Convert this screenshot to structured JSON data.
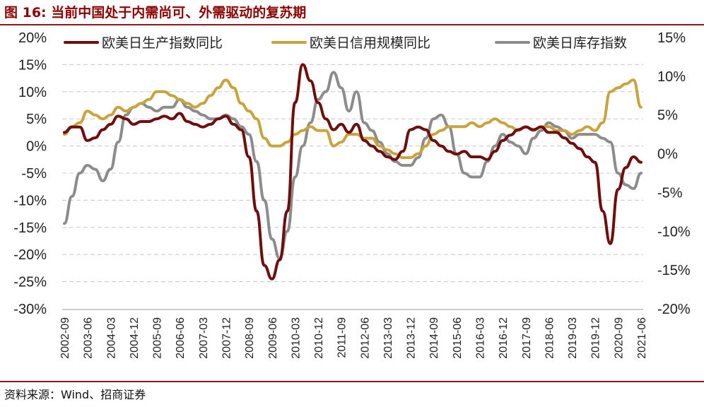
{
  "figure": {
    "title": "图 16:  当前中国处于内需尚可、外需驱动的复苏期",
    "source": "资料来源：Wind、招商证券"
  },
  "chart_data": {
    "type": "line",
    "x": [
      "2002-09",
      "2002-12",
      "2003-03",
      "2003-06",
      "2003-09",
      "2003-12",
      "2004-03",
      "2004-06",
      "2004-09",
      "2004-12",
      "2005-03",
      "2005-06",
      "2005-09",
      "2005-12",
      "2006-03",
      "2006-06",
      "2006-09",
      "2006-12",
      "2007-03",
      "2007-06",
      "2007-09",
      "2007-12",
      "2008-03",
      "2008-06",
      "2008-09",
      "2008-12",
      "2009-03",
      "2009-06",
      "2009-09",
      "2009-12",
      "2010-03",
      "2010-06",
      "2010-09",
      "2010-12",
      "2011-03",
      "2011-06",
      "2011-09",
      "2011-12",
      "2012-03",
      "2012-06",
      "2012-09",
      "2012-12",
      "2013-03",
      "2013-06",
      "2013-09",
      "2013-12",
      "2014-03",
      "2014-06",
      "2014-09",
      "2014-12",
      "2015-03",
      "2015-06",
      "2015-09",
      "2015-12",
      "2016-03",
      "2016-06",
      "2016-09",
      "2016-12",
      "2017-03",
      "2017-06",
      "2017-09",
      "2017-12",
      "2018-03",
      "2018-06",
      "2018-09",
      "2018-12",
      "2019-03",
      "2019-06",
      "2019-09",
      "2019-12",
      "2020-03",
      "2020-06",
      "2020-09",
      "2020-12",
      "2021-03",
      "2021-06"
    ],
    "x_tick_labels": [
      "2002-09",
      "2003-06",
      "2004-03",
      "2004-12",
      "2005-09",
      "2006-06",
      "2007-03",
      "2007-12",
      "2008-09",
      "2009-06",
      "2010-03",
      "2010-12",
      "2011-09",
      "2012-06",
      "2013-03",
      "2013-12",
      "2014-09",
      "2015-06",
      "2016-03",
      "2016-12",
      "2017-09",
      "2018-06",
      "2019-03",
      "2019-12",
      "2020-09",
      "2021-06"
    ],
    "y_left": {
      "min": -30,
      "max": 20,
      "step": 5,
      "tick_labels": [
        "20%",
        "15%",
        "10%",
        "5%",
        "0%",
        "-5%",
        "-10%",
        "-15%",
        "-20%",
        "-25%",
        "-30%"
      ]
    },
    "y_right": {
      "min": -20,
      "max": 15,
      "step": 5,
      "tick_labels": [
        "15%",
        "10%",
        "5%",
        "0%",
        "-5%",
        "-10%",
        "-15%",
        "-20%"
      ]
    },
    "grid": "horizontal-dashed",
    "legend_position": "top",
    "series": [
      {
        "name": "欧美日生产指数同比",
        "color": "#6E0E0E",
        "axis": "left",
        "values": [
          2.5,
          3.5,
          3.5,
          1.0,
          1.5,
          3.0,
          4.0,
          5.5,
          5.0,
          4.0,
          4.5,
          4.5,
          5.0,
          5.5,
          5.0,
          6.0,
          4.5,
          4.0,
          3.5,
          4.0,
          5.0,
          5.5,
          4.0,
          3.0,
          -2.0,
          -12.0,
          -22.0,
          -24.5,
          -21.0,
          -12.0,
          8.0,
          15.0,
          12.0,
          8.0,
          5.0,
          3.0,
          4.0,
          2.5,
          4.0,
          1.0,
          0.0,
          -1.0,
          -2.0,
          -2.5,
          -1.0,
          3.0,
          3.5,
          3.0,
          1.0,
          0.0,
          -1.0,
          -1.5,
          -1.0,
          -2.0,
          -2.0,
          -2.5,
          -1.0,
          1.0,
          2.0,
          3.0,
          3.5,
          3.0,
          3.5,
          2.5,
          2.5,
          1.5,
          0.5,
          -0.5,
          -2.0,
          -3.0,
          -12.0,
          -18.0,
          -8.0,
          -4.0,
          -2.0,
          -3.0
        ]
      },
      {
        "name": "欧美日信用规模同比",
        "color": "#C8A43C",
        "axis": "right",
        "values": [
          2.5,
          3.5,
          4.0,
          5.5,
          5.0,
          4.5,
          5.0,
          6.0,
          5.5,
          6.0,
          6.5,
          7.0,
          8.0,
          8.0,
          7.5,
          7.0,
          6.5,
          6.0,
          6.5,
          7.5,
          8.5,
          9.5,
          8.5,
          6.5,
          5.5,
          4.5,
          2.0,
          1.0,
          1.0,
          1.5,
          2.5,
          3.0,
          3.5,
          3.0,
          3.0,
          1.0,
          1.5,
          2.5,
          2.5,
          2.0,
          2.0,
          1.0,
          0.5,
          0.0,
          -0.5,
          -0.5,
          0.0,
          1.0,
          2.5,
          3.0,
          3.5,
          3.5,
          3.5,
          4.0,
          3.5,
          4.0,
          4.5,
          4.0,
          3.5,
          3.0,
          3.5,
          3.0,
          3.5,
          3.5,
          3.0,
          3.0,
          2.5,
          3.0,
          3.5,
          3.0,
          4.0,
          8.0,
          8.5,
          9.0,
          9.5,
          6.0
        ]
      },
      {
        "name": "欧美日库存指数",
        "color": "#8C8C8C",
        "axis": "right",
        "values": [
          -9.0,
          -5.5,
          -2.5,
          -1.5,
          -2.0,
          -3.5,
          -2.0,
          1.5,
          5.0,
          6.0,
          6.5,
          6.0,
          5.5,
          6.0,
          6.0,
          7.0,
          6.0,
          5.5,
          5.0,
          4.5,
          4.5,
          5.0,
          4.5,
          3.5,
          2.5,
          -1.0,
          -6.0,
          -11.0,
          -13.5,
          -10.0,
          -3.0,
          1.0,
          4.0,
          7.0,
          8.0,
          10.5,
          8.5,
          5.5,
          8.0,
          4.0,
          3.0,
          1.5,
          0.0,
          -1.0,
          -1.5,
          -1.5,
          -0.5,
          2.0,
          4.5,
          5.0,
          3.5,
          0.0,
          -2.5,
          -3.0,
          -3.0,
          -1.0,
          1.0,
          2.5,
          1.5,
          1.0,
          0.0,
          2.0,
          3.0,
          4.0,
          3.5,
          3.0,
          2.0,
          2.5,
          2.5,
          2.5,
          2.0,
          1.5,
          -2.5,
          -4.0,
          -4.5,
          -2.5
        ]
      }
    ]
  }
}
